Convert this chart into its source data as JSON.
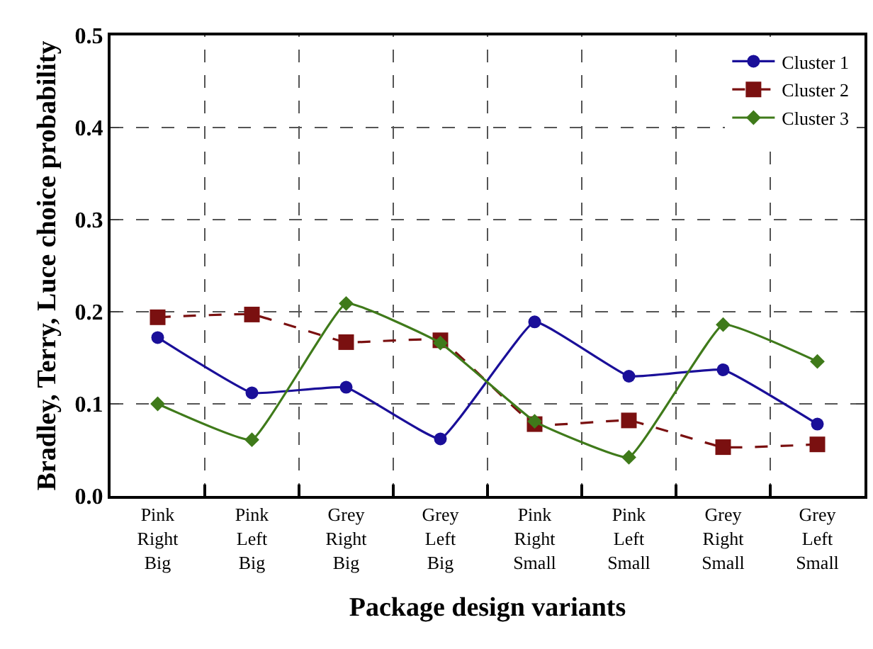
{
  "chart_data": {
    "type": "line",
    "xlabel": "Package design variants",
    "ylabel": "Bradley, Terry, Luce choice probability",
    "categories": [
      "Pink\nRight\nBig",
      "Pink\nLeft\nBig",
      "Grey\nRight\nBig",
      "Grey\nLeft\nBig",
      "Pink\nRight\nSmall",
      "Pink\nLeft\nSmall",
      "Grey\nRight\nSmall",
      "Grey\nLeft\nSmall"
    ],
    "series": [
      {
        "name": "Cluster 1",
        "color": "#1a0f99",
        "marker": "circle",
        "line_style": "solid",
        "values": [
          0.172,
          0.112,
          0.118,
          0.062,
          0.189,
          0.13,
          0.137,
          0.078
        ]
      },
      {
        "name": "Cluster 2",
        "color": "#7a1010",
        "marker": "square",
        "line_style": "dashed",
        "values": [
          0.194,
          0.197,
          0.167,
          0.169,
          0.078,
          0.082,
          0.053,
          0.056
        ]
      },
      {
        "name": "Cluster 3",
        "color": "#3f7a1a",
        "marker": "diamond",
        "line_style": "solid",
        "values": [
          0.1,
          0.061,
          0.209,
          0.166,
          0.081,
          0.042,
          0.186,
          0.146
        ]
      }
    ],
    "ylim": [
      0,
      0.5
    ],
    "yticks": [
      {
        "value": 0,
        "label": "0.0"
      },
      0.1,
      0.2,
      0.3,
      0.4,
      0.5
    ],
    "grid": true,
    "legend": "top right"
  }
}
